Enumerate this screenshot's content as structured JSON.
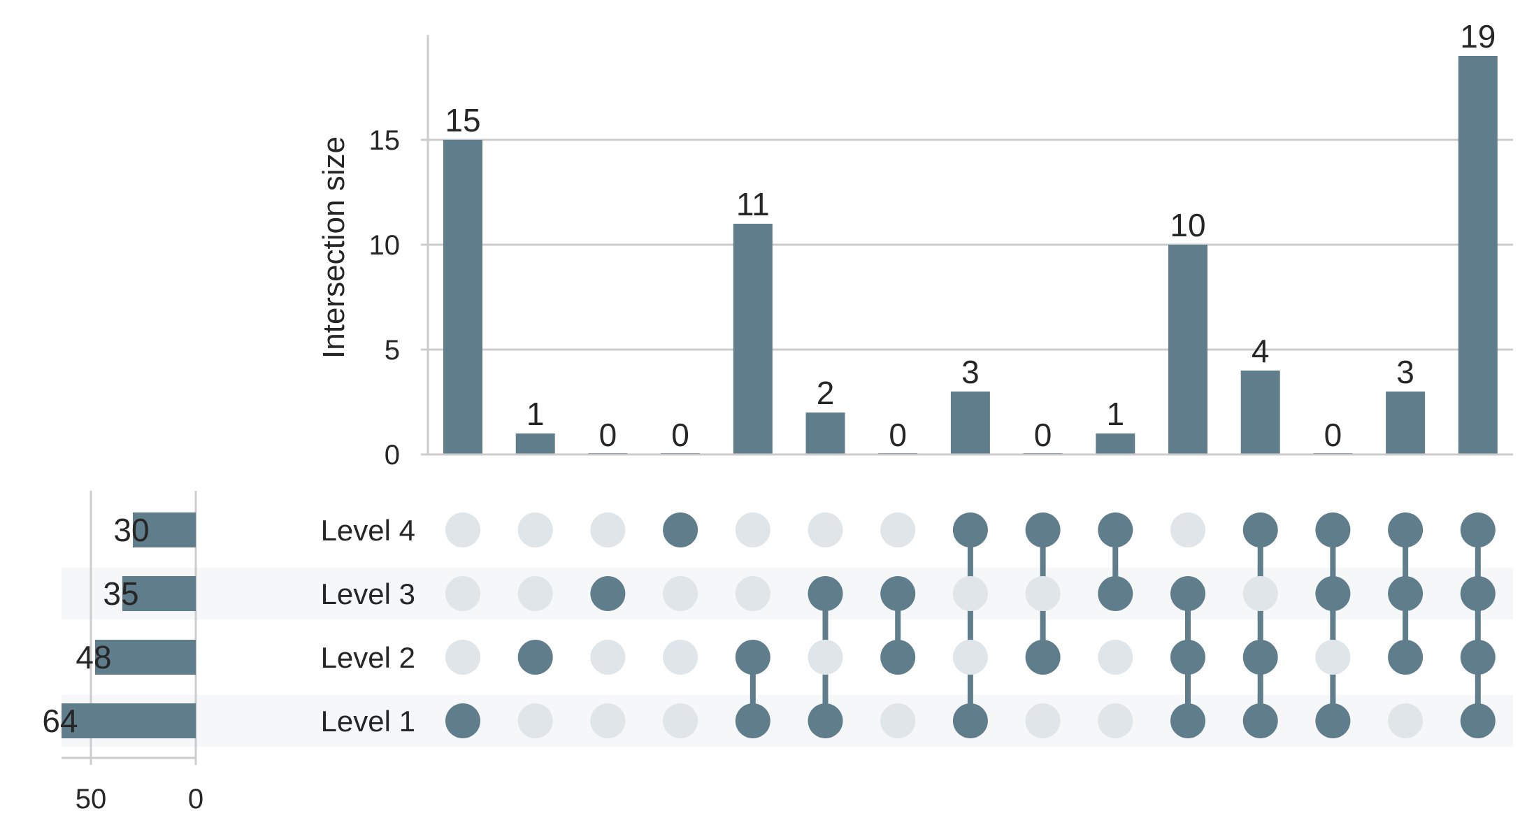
{
  "colors": {
    "bar": "#607d8b",
    "inactive_dot": "#dfe5e8",
    "stripe": "#f5f7f9",
    "grid": "#cccccc",
    "text": "#262626"
  },
  "chart_data": {
    "type": "bar",
    "subtype": "upset",
    "ylabel": "Intersection size",
    "ylim": [
      0,
      20
    ],
    "yticks": [
      "0",
      "5",
      "10",
      "15"
    ],
    "ytick_values": [
      0,
      5,
      10,
      15
    ],
    "grid": true,
    "sets": [
      "Level 4",
      "Level 3",
      "Level 2",
      "Level 1"
    ],
    "set_sizes": [
      30,
      35,
      48,
      64
    ],
    "set_size_ticks": [
      "50",
      "0"
    ],
    "set_size_tick_values": [
      50,
      0
    ],
    "set_size_max": 64,
    "intersections": [
      {
        "value": 15,
        "members": [
          "Level 1"
        ]
      },
      {
        "value": 1,
        "members": [
          "Level 2"
        ]
      },
      {
        "value": 0,
        "members": [
          "Level 3"
        ]
      },
      {
        "value": 0,
        "members": [
          "Level 4"
        ]
      },
      {
        "value": 11,
        "members": [
          "Level 2",
          "Level 1"
        ]
      },
      {
        "value": 2,
        "members": [
          "Level 3",
          "Level 1"
        ]
      },
      {
        "value": 0,
        "members": [
          "Level 3",
          "Level 2"
        ]
      },
      {
        "value": 3,
        "members": [
          "Level 4",
          "Level 1"
        ]
      },
      {
        "value": 0,
        "members": [
          "Level 4",
          "Level 2"
        ]
      },
      {
        "value": 1,
        "members": [
          "Level 4",
          "Level 3"
        ]
      },
      {
        "value": 10,
        "members": [
          "Level 3",
          "Level 2",
          "Level 1"
        ]
      },
      {
        "value": 4,
        "members": [
          "Level 4",
          "Level 2",
          "Level 1"
        ]
      },
      {
        "value": 0,
        "members": [
          "Level 4",
          "Level 3",
          "Level 1"
        ]
      },
      {
        "value": 3,
        "members": [
          "Level 4",
          "Level 3",
          "Level 2"
        ]
      },
      {
        "value": 19,
        "members": [
          "Level 4",
          "Level 3",
          "Level 2",
          "Level 1"
        ]
      }
    ]
  }
}
